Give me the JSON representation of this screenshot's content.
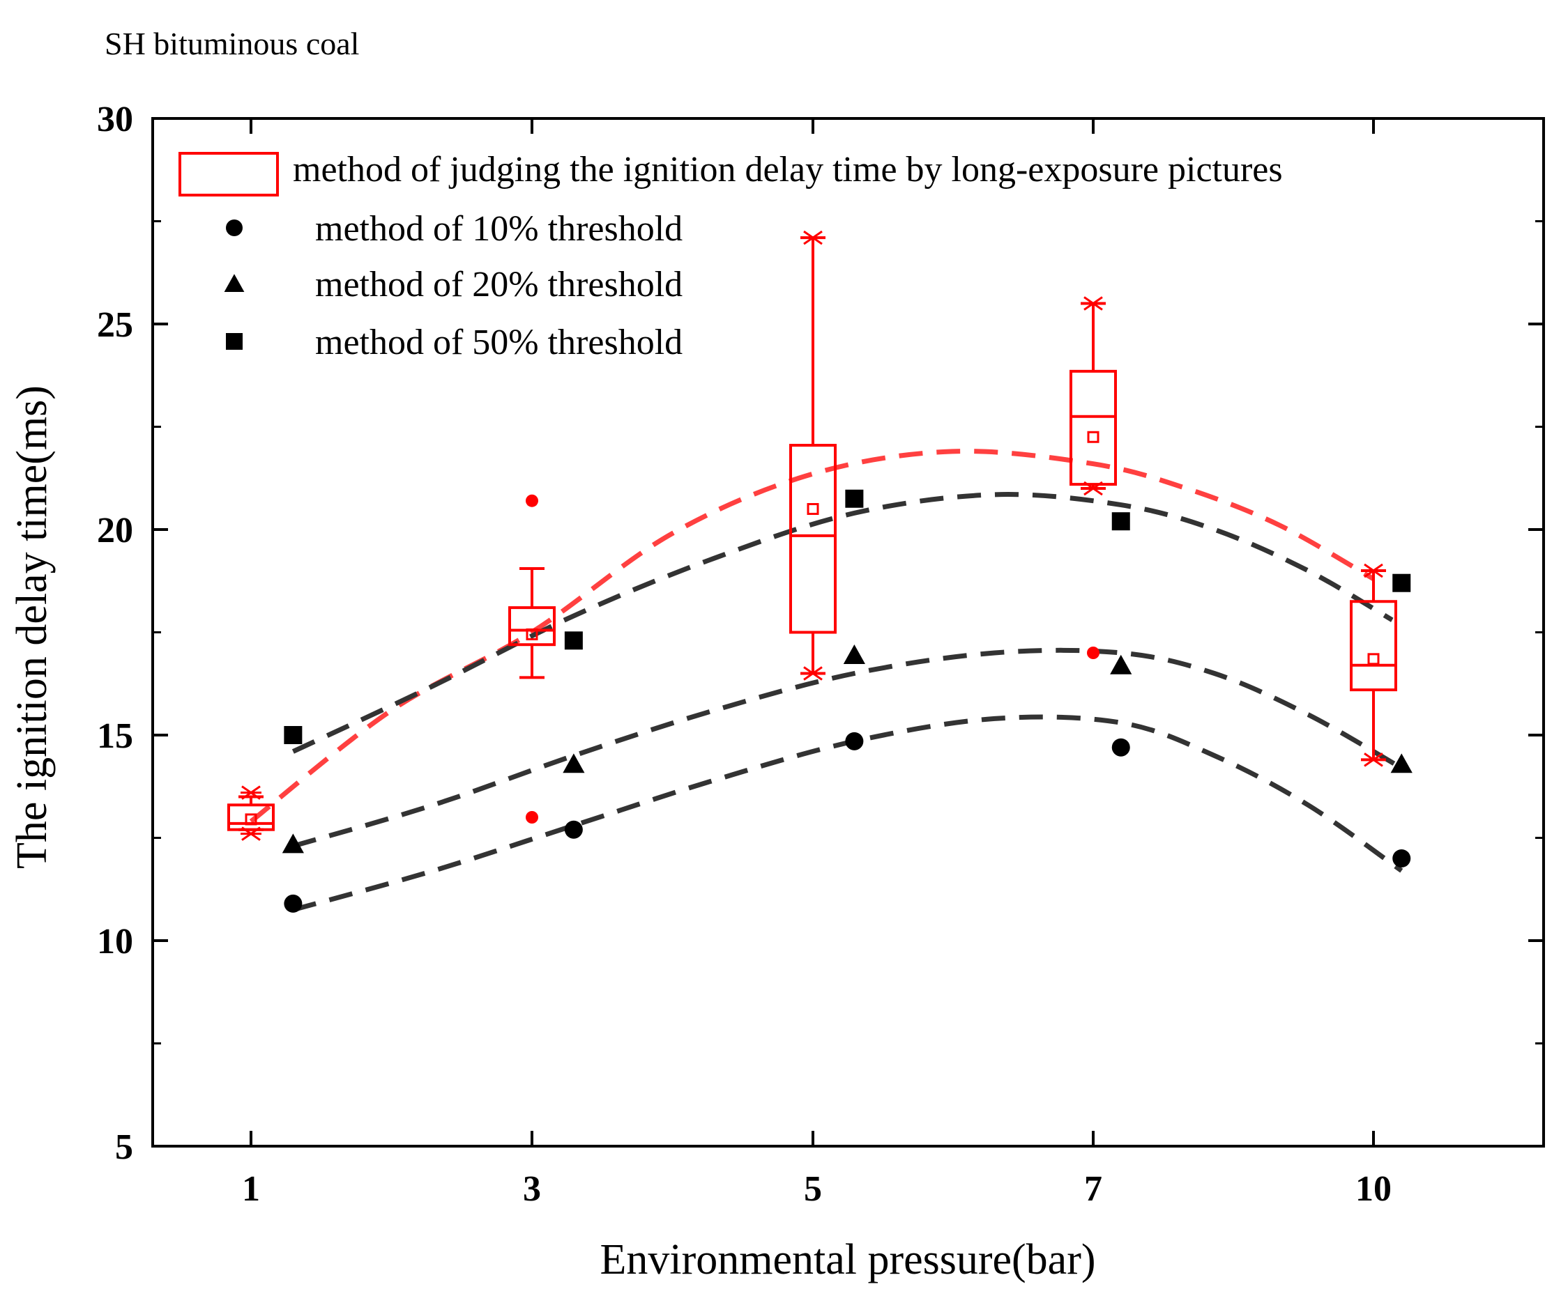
{
  "chart_data": {
    "type": "scatter",
    "title": "SH bituminous coal",
    "xlabel": "Environmental pressure(bar)",
    "ylabel": "The ignition delay time(ms)",
    "ylim": [
      5,
      30
    ],
    "yticks": [
      5,
      10,
      15,
      20,
      25,
      30
    ],
    "x_categories": [
      "1",
      "3",
      "5",
      "7",
      "10"
    ],
    "grid": false,
    "legend_position": "top-left",
    "colors": {
      "box": "#ff0000",
      "points": "#000000",
      "fit_box": "#ff4040",
      "fit_points": "#333333"
    },
    "boxplot": {
      "name": "method of judging the ignition delay time by long-exposure pictures",
      "boxes": [
        {
          "x": "1",
          "whisker_low": 12.7,
          "q1": 12.7,
          "median": 12.85,
          "q3": 13.3,
          "whisker_high": 13.5,
          "mean": 12.95,
          "extremes": [
            12.6,
            13.6
          ],
          "outliers": []
        },
        {
          "x": "3",
          "whisker_low": 16.4,
          "q1": 17.2,
          "median": 17.55,
          "q3": 18.1,
          "whisker_high": 19.05,
          "mean": 17.45,
          "extremes": [],
          "outliers": [
            20.7,
            13.0
          ]
        },
        {
          "x": "5",
          "whisker_low": 16.5,
          "q1": 17.5,
          "median": 19.85,
          "q3": 22.05,
          "whisker_high": 27.1,
          "mean": 20.5,
          "extremes": [
            16.5,
            27.1
          ],
          "outliers": []
        },
        {
          "x": "7",
          "whisker_low": 21.0,
          "q1": 21.1,
          "median": 22.75,
          "q3": 23.85,
          "whisker_high": 25.5,
          "mean": 22.25,
          "extremes": [
            21.0,
            25.5
          ],
          "outliers": [
            17.0
          ]
        },
        {
          "x": "10",
          "whisker_low": 14.4,
          "q1": 16.1,
          "median": 16.7,
          "q3": 18.25,
          "whisker_high": 19.0,
          "mean": 16.85,
          "extremes": [
            14.4,
            19.0
          ],
          "outliers": []
        }
      ]
    },
    "series": [
      {
        "name": "method of 10% threshold",
        "marker": "circle",
        "x": [
          1.3,
          3.3,
          5.3,
          7.3,
          10.3
        ],
        "y": [
          10.9,
          12.7,
          14.85,
          14.7,
          12.0
        ]
      },
      {
        "name": "method of 20% threshold",
        "marker": "triangle",
        "x": [
          1.3,
          3.3,
          5.3,
          7.3,
          10.3
        ],
        "y": [
          12.35,
          14.3,
          16.95,
          16.7,
          14.3
        ]
      },
      {
        "name": "method of 50% threshold",
        "marker": "square",
        "x": [
          1.3,
          3.3,
          5.3,
          7.3,
          10.3
        ],
        "y": [
          15.0,
          17.3,
          20.75,
          20.2,
          18.7
        ]
      }
    ],
    "fit_curves": [
      {
        "of": "long-exposure pictures",
        "style": "dashed",
        "color": "#ff4040",
        "x": [
          1.0,
          2.0,
          3.0,
          4.0,
          5.0,
          6.0,
          7.0,
          8.0,
          9.0,
          10.0
        ],
        "y": [
          12.9,
          15.6,
          17.5,
          19.9,
          21.35,
          21.9,
          21.6,
          21.0,
          20.1,
          18.8
        ]
      },
      {
        "of": "method of 50% threshold",
        "style": "dashed",
        "color": "#333333",
        "x": [
          1.3,
          2.3,
          3.3,
          4.3,
          5.3,
          6.3,
          7.3,
          8.3,
          9.3,
          10.2
        ],
        "y": [
          14.6,
          16.2,
          17.9,
          19.3,
          20.4,
          20.85,
          20.6,
          20.0,
          19.0,
          17.8
        ]
      },
      {
        "of": "method of 20% threshold",
        "style": "dashed",
        "color": "#333333",
        "x": [
          1.3,
          2.3,
          3.3,
          4.3,
          5.3,
          6.3,
          7.3,
          8.3,
          9.3,
          10.3
        ],
        "y": [
          12.3,
          13.3,
          14.5,
          15.6,
          16.5,
          17.0,
          17.0,
          16.5,
          15.5,
          14.2
        ]
      },
      {
        "of": "method of 10% threshold",
        "style": "dashed",
        "color": "#333333",
        "x": [
          1.3,
          2.3,
          3.3,
          4.3,
          5.3,
          6.3,
          7.3,
          8.3,
          9.3,
          10.3
        ],
        "y": [
          10.75,
          11.7,
          12.8,
          13.9,
          14.85,
          15.4,
          15.3,
          14.5,
          13.3,
          11.7
        ]
      }
    ]
  }
}
